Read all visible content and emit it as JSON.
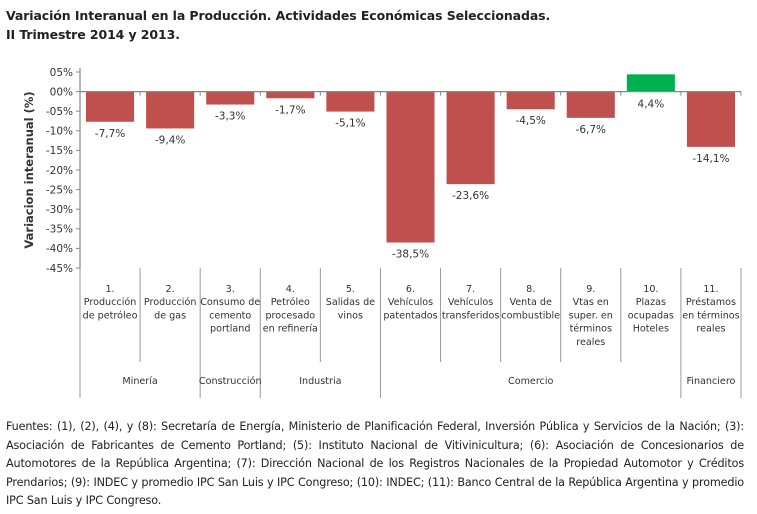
{
  "title": {
    "line1": "Variación Interanual en la Producción. Actividades Económicas Seleccionadas.",
    "line2": "II Trimestre 2014 y 2013."
  },
  "chart_data": {
    "type": "bar",
    "title": "Variación Interanual en la Producción. Actividades Económicas Seleccionadas. II Trimestre 2014 y 2013.",
    "xlabel": "",
    "ylabel": "Variacion interanual (%)",
    "ylim": [
      -45,
      5
    ],
    "yticks": [
      5,
      0,
      -5,
      -10,
      -15,
      -20,
      -25,
      -30,
      -35,
      -40,
      -45
    ],
    "ytick_labels": [
      "05%",
      "00%",
      "-05%",
      "-10%",
      "-15%",
      "-20%",
      "-25%",
      "-30%",
      "-35%",
      "-40%",
      "-45%"
    ],
    "grid": false,
    "legend": "none",
    "categories": [
      [
        "1.",
        "Producción",
        "de petróleo"
      ],
      [
        "2.",
        "Producción",
        "de gas"
      ],
      [
        "3.",
        "Consumo de",
        "cemento",
        "portland"
      ],
      [
        "4.",
        "Petróleo",
        "procesado",
        "en refinería"
      ],
      [
        "5.",
        "Salidas de",
        "vinos"
      ],
      [
        "6.",
        "Vehículos",
        "patentados"
      ],
      [
        "7.",
        "Vehículos",
        "transferidos"
      ],
      [
        "8.",
        "Venta de",
        "combustible"
      ],
      [
        "9.",
        "Vtas en",
        "super. en",
        "términos",
        "reales"
      ],
      [
        "10.",
        "Plazas",
        "ocupadas",
        "Hoteles"
      ],
      [
        "11.",
        "Préstamos",
        "en términos",
        "reales"
      ]
    ],
    "values": [
      -7.7,
      -9.4,
      -3.3,
      -1.7,
      -5.1,
      -38.5,
      -23.6,
      -4.5,
      -6.7,
      4.4,
      -14.1
    ],
    "data_labels": [
      "-7,7%",
      "-9,4%",
      "-3,3%",
      "-1,7%",
      "-5,1%",
      "-38,5%",
      "-23,6%",
      "-4,5%",
      "-6,7%",
      "4,4%",
      "-14,1%"
    ],
    "groups": [
      {
        "name": "Minería",
        "start": 0,
        "end": 1
      },
      {
        "name": "Construcción",
        "start": 2,
        "end": 2
      },
      {
        "name": "Industria",
        "start": 3,
        "end": 4
      },
      {
        "name": "Comercio",
        "start": 5,
        "end": 9
      },
      {
        "name": "Financiero",
        "start": 10,
        "end": 10
      }
    ],
    "colors": {
      "negative": "#c0504d",
      "positive": "#00b050",
      "axis": "#888888"
    }
  },
  "footer": {
    "sources": "Fuentes: (1), (2), (4), y (8): Secretaría de Energía, Ministerio de Planificación Federal, Inversión Pública y Servicios de la Nación; (3): Asociación de Fabricantes de Cemento Portland; (5): Instituto Nacional de Vitivinicultura; (6): Asociación de Concesionarios de Automotores de la República Argentina; (7): Dirección Nacional de los Registros Nacionales de la Propiedad Automotor y Créditos Prendarios; (9): INDEC y promedio IPC San Luis y IPC Congreso; (10): INDEC; (11): Banco Central de la República Argentina y promedio IPC San Luis y IPC Congreso."
  }
}
